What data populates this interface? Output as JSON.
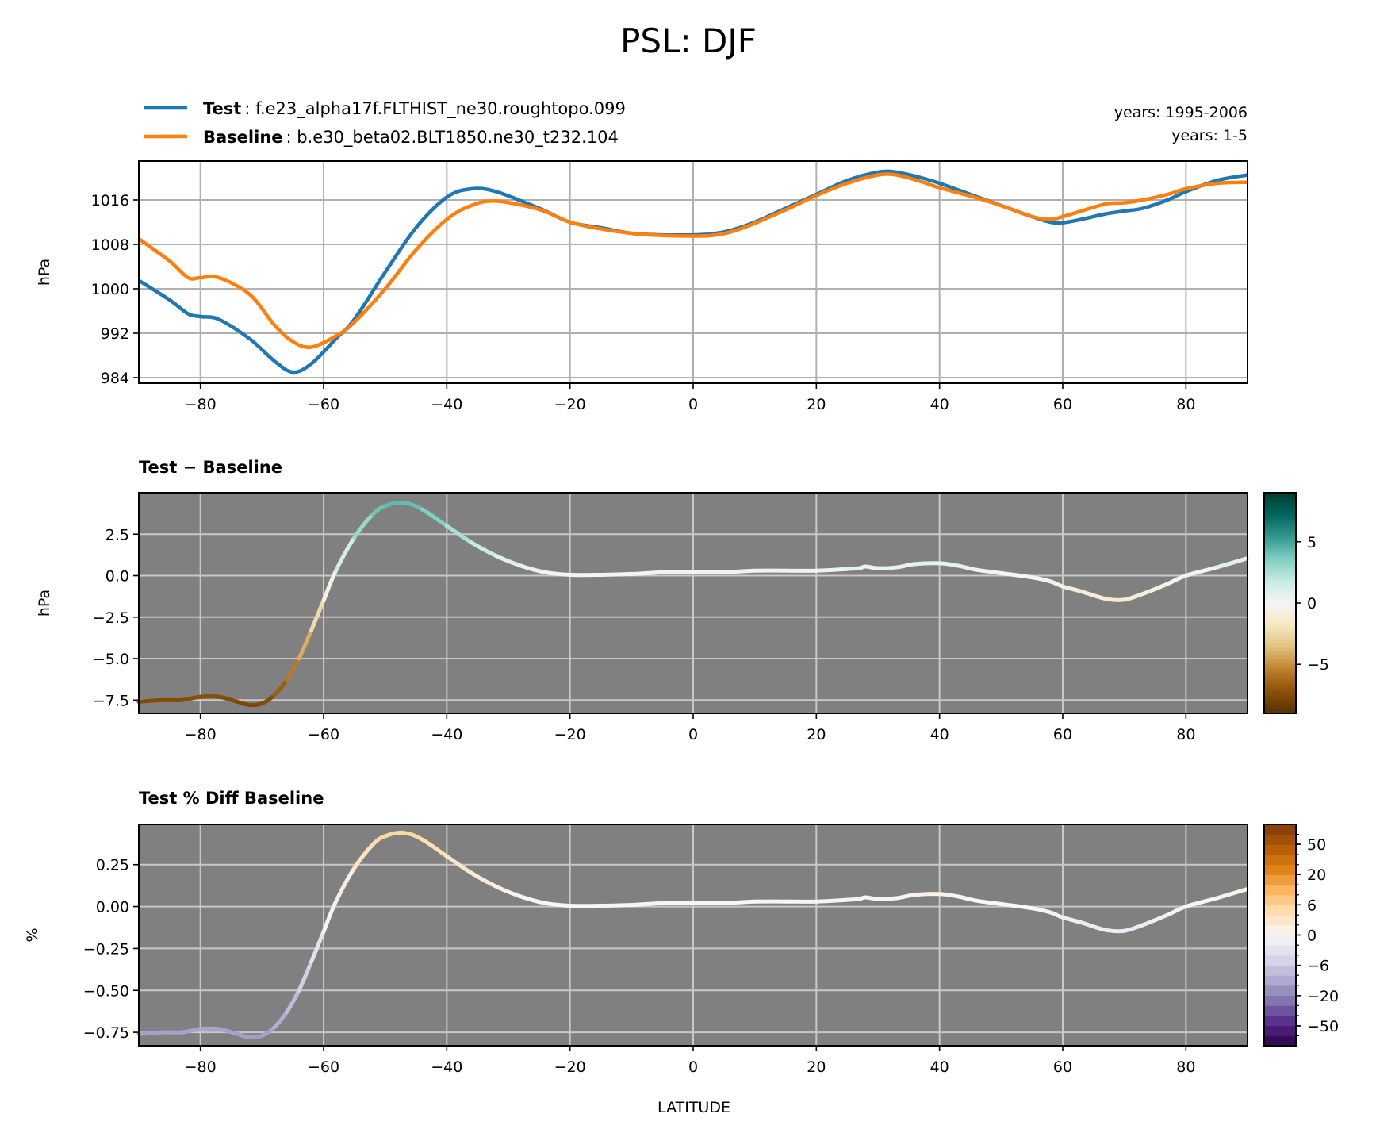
{
  "figure": {
    "title": "PSL: DJF",
    "legend": [
      {
        "name": "Test",
        "desc": ": f.e23_alpha17f.FLTHIST_ne30.roughtopo.099",
        "color": "#1f77b4"
      },
      {
        "name": "Baseline",
        "desc": ": b.e30_beta02.BLT1850.ne30_t232.104",
        "color": "#ff7f0e"
      }
    ],
    "years_test": "years: 1995-2006",
    "years_base": "years: 1-5",
    "xlabel": "LATITUDE"
  },
  "chart_data": [
    {
      "type": "line",
      "title": "",
      "ylabel": "hPa",
      "xlim": [
        -90,
        90
      ],
      "ylim": [
        983,
        1023
      ],
      "xticks": [
        -80,
        -60,
        -40,
        -20,
        0,
        20,
        40,
        60,
        80
      ],
      "xtick_labels": [
        "−80",
        "−60",
        "−40",
        "−20",
        "0",
        "20",
        "40",
        "60",
        "80"
      ],
      "yticks": [
        984,
        992,
        1000,
        1008,
        1016
      ],
      "ytick_labels": [
        "984",
        "992",
        "1000",
        "1008",
        "1016"
      ],
      "grid": true,
      "x": [
        -90,
        -85,
        -82,
        -80,
        -77,
        -72,
        -68,
        -65,
        -62,
        -58,
        -55,
        -50,
        -45,
        -40,
        -36,
        -32,
        -25,
        -20,
        -15,
        -10,
        -5,
        0,
        3,
        6,
        10,
        15,
        20,
        25,
        30,
        33,
        37,
        40,
        45,
        50,
        55,
        58,
        60,
        63,
        67,
        70,
        73,
        77,
        80,
        85,
        90
      ],
      "series": [
        {
          "name": "Test",
          "color": "#1f77b4",
          "values": [
            1001.5,
            998,
            995.5,
            995,
            994.5,
            991,
            987,
            985,
            986.5,
            991,
            994.5,
            1003,
            1011,
            1016.5,
            1018,
            1017.5,
            1014.5,
            1012,
            1011,
            1010,
            1009.7,
            1009.7,
            1009.9,
            1010.5,
            1012,
            1014.5,
            1017,
            1019.5,
            1021,
            1021,
            1020,
            1019,
            1017,
            1015,
            1013,
            1012,
            1011.9,
            1012.5,
            1013.5,
            1014,
            1014.5,
            1016,
            1017.5,
            1019.5,
            1020.5
          ]
        },
        {
          "name": "Baseline",
          "color": "#ff7f0e",
          "values": [
            1009,
            1005,
            1002,
            1002,
            1002,
            999,
            993.5,
            990.5,
            989.5,
            991.5,
            994,
            1000,
            1007,
            1012.5,
            1015,
            1015.8,
            1014.3,
            1012,
            1010.8,
            1010,
            1009.6,
            1009.5,
            1009.6,
            1010.2,
            1011.8,
            1014.2,
            1016.8,
            1019,
            1020.5,
            1020.5,
            1019.3,
            1018.2,
            1016.7,
            1015,
            1013,
            1012.5,
            1013,
            1014,
            1015.3,
            1015.5,
            1016,
            1017,
            1018,
            1019,
            1019.2
          ]
        }
      ]
    },
    {
      "type": "line",
      "title": "Test − Baseline",
      "ylabel": "hPa",
      "xlim": [
        -90,
        90
      ],
      "ylim": [
        -8.3,
        5.0
      ],
      "xticks": [
        -80,
        -60,
        -40,
        -20,
        0,
        20,
        40,
        60,
        80
      ],
      "xtick_labels": [
        "−80",
        "−60",
        "−40",
        "−20",
        "0",
        "20",
        "40",
        "60",
        "80"
      ],
      "yticks": [
        -7.5,
        -5.0,
        -2.5,
        0.0,
        2.5
      ],
      "ytick_labels": [
        "−7.5",
        "−5.0",
        "−2.5",
        "0.0",
        "2.5"
      ],
      "grid": true,
      "background": "#808080",
      "x": [
        -90,
        -86,
        -83,
        -80,
        -77,
        -74,
        -72,
        -70,
        -68,
        -66,
        -64,
        -62,
        -60,
        -58,
        -55,
        -52,
        -50,
        -47,
        -44,
        -40,
        -36,
        -32,
        -28,
        -24,
        -20,
        -15,
        -10,
        -5,
        0,
        5,
        10,
        15,
        20,
        25,
        27,
        28,
        30,
        33,
        36,
        40,
        43,
        46,
        50,
        55,
        58,
        60,
        63,
        67,
        70,
        73,
        77,
        80,
        85,
        90
      ],
      "series": [
        {
          "name": "Test − Baseline",
          "colormap": "BrBG",
          "vmin": -9,
          "vmax": 9,
          "values": [
            -7.6,
            -7.5,
            -7.5,
            -7.3,
            -7.3,
            -7.6,
            -7.8,
            -7.7,
            -7.2,
            -6.3,
            -5.0,
            -3.3,
            -1.5,
            0.3,
            2.3,
            3.7,
            4.2,
            4.4,
            4.0,
            3.0,
            2.0,
            1.2,
            0.6,
            0.2,
            0.05,
            0.05,
            0.1,
            0.2,
            0.2,
            0.2,
            0.3,
            0.3,
            0.3,
            0.4,
            0.45,
            0.55,
            0.45,
            0.5,
            0.7,
            0.75,
            0.6,
            0.35,
            0.15,
            -0.1,
            -0.35,
            -0.65,
            -0.95,
            -1.4,
            -1.45,
            -1.1,
            -0.5,
            0.0,
            0.5,
            1.05
          ]
        }
      ],
      "colorbar": {
        "colormap": "BrBG",
        "ticks": [
          5,
          0,
          -5
        ],
        "tick_labels": [
          "5",
          "0",
          "−5"
        ],
        "range": [
          -9,
          9
        ]
      }
    },
    {
      "type": "line",
      "title": "Test % Diff Baseline",
      "ylabel": "%",
      "xlim": [
        -90,
        90
      ],
      "ylim": [
        -0.83,
        0.49
      ],
      "xticks": [
        -80,
        -60,
        -40,
        -20,
        0,
        20,
        40,
        60,
        80
      ],
      "xtick_labels": [
        "−80",
        "−60",
        "−40",
        "−20",
        "0",
        "20",
        "40",
        "60",
        "80"
      ],
      "yticks": [
        -0.75,
        -0.5,
        -0.25,
        0.0,
        0.25
      ],
      "ytick_labels": [
        "−0.75",
        "−0.50",
        "−0.25",
        "0.00",
        "0.25"
      ],
      "grid": true,
      "background": "#808080",
      "xlabel": "LATITUDE",
      "x": [
        -90,
        -86,
        -83,
        -80,
        -77,
        -74,
        -72,
        -70,
        -68,
        -66,
        -64,
        -62,
        -60,
        -58,
        -55,
        -52,
        -50,
        -47,
        -44,
        -40,
        -36,
        -32,
        -28,
        -24,
        -20,
        -15,
        -10,
        -5,
        0,
        5,
        10,
        15,
        20,
        25,
        27,
        28,
        30,
        33,
        36,
        40,
        43,
        46,
        50,
        55,
        58,
        60,
        63,
        67,
        70,
        73,
        77,
        80,
        85,
        90
      ],
      "series": [
        {
          "name": "Test % Diff Baseline",
          "colormap": "PuOr",
          "values": [
            -0.76,
            -0.75,
            -0.75,
            -0.73,
            -0.73,
            -0.76,
            -0.78,
            -0.77,
            -0.72,
            -0.63,
            -0.5,
            -0.33,
            -0.15,
            0.03,
            0.23,
            0.37,
            0.42,
            0.44,
            0.4,
            0.3,
            0.2,
            0.12,
            0.06,
            0.02,
            0.005,
            0.005,
            0.01,
            0.02,
            0.02,
            0.02,
            0.03,
            0.03,
            0.03,
            0.04,
            0.045,
            0.055,
            0.045,
            0.05,
            0.07,
            0.075,
            0.06,
            0.035,
            0.015,
            -0.01,
            -0.035,
            -0.065,
            -0.095,
            -0.14,
            -0.145,
            -0.11,
            -0.05,
            0.0,
            0.05,
            0.105
          ]
        }
      ],
      "colorbar": {
        "colormap": "PuOr",
        "ticks": [
          50,
          20,
          6,
          0,
          -6,
          -20,
          -50
        ],
        "tick_labels": [
          "50",
          "20",
          "6",
          "0",
          "−6",
          "−20",
          "−50"
        ]
      }
    }
  ]
}
